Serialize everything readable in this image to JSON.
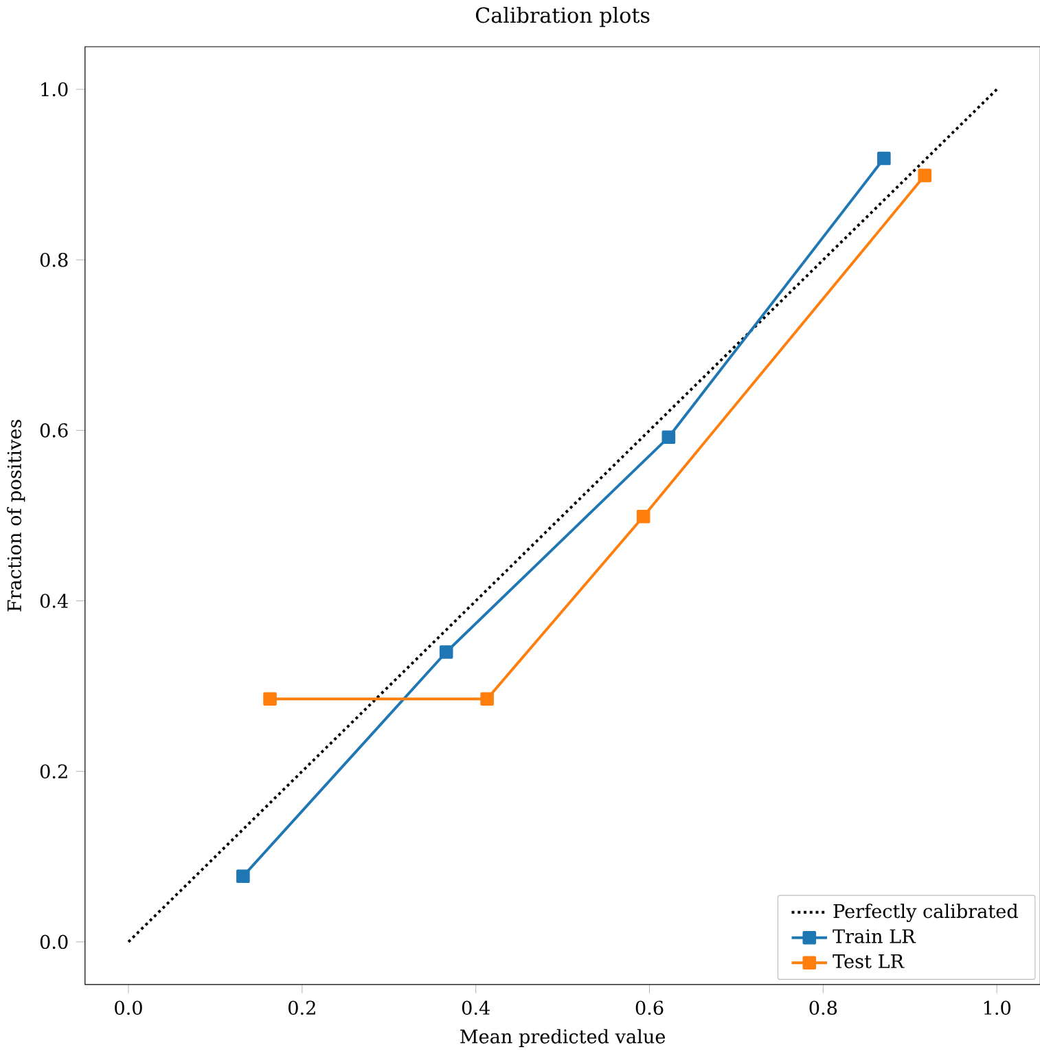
{
  "chart_data": {
    "type": "line",
    "title": "Calibration plots",
    "xlabel": "Mean predicted value",
    "ylabel": "Fraction of positives",
    "xlim": [
      -0.05,
      1.05
    ],
    "ylim": [
      -0.05,
      1.05
    ],
    "xticks": [
      {
        "value": 0,
        "label": "0.0"
      },
      0.2,
      0.4,
      0.6,
      0.8,
      {
        "value": 1,
        "label": "1.0"
      }
    ],
    "yticks": [
      {
        "value": 0,
        "label": "0.0"
      },
      0.2,
      0.4,
      0.6,
      0.8,
      {
        "value": 1,
        "label": "1.0"
      }
    ],
    "legend": "bottom right",
    "grid": false,
    "series": [
      {
        "name": "Perfectly calibrated",
        "color": "#000000",
        "x": [
          0,
          1
        ],
        "values": [
          0,
          1
        ],
        "line_style": "dotted",
        "marker": "none"
      },
      {
        "name": "Train LR",
        "color": "#1f77b4",
        "x": [
          0.132,
          0.366,
          0.622,
          0.87
        ],
        "values": [
          0.077,
          0.34,
          0.592,
          0.919
        ],
        "line_style": "solid",
        "marker": "square"
      },
      {
        "name": "Test LR",
        "color": "#ff7f0e",
        "x": [
          0.163,
          0.413,
          0.593,
          0.917
        ],
        "values": [
          0.285,
          0.285,
          0.499,
          0.899
        ],
        "line_style": "solid",
        "marker": "square"
      }
    ]
  }
}
